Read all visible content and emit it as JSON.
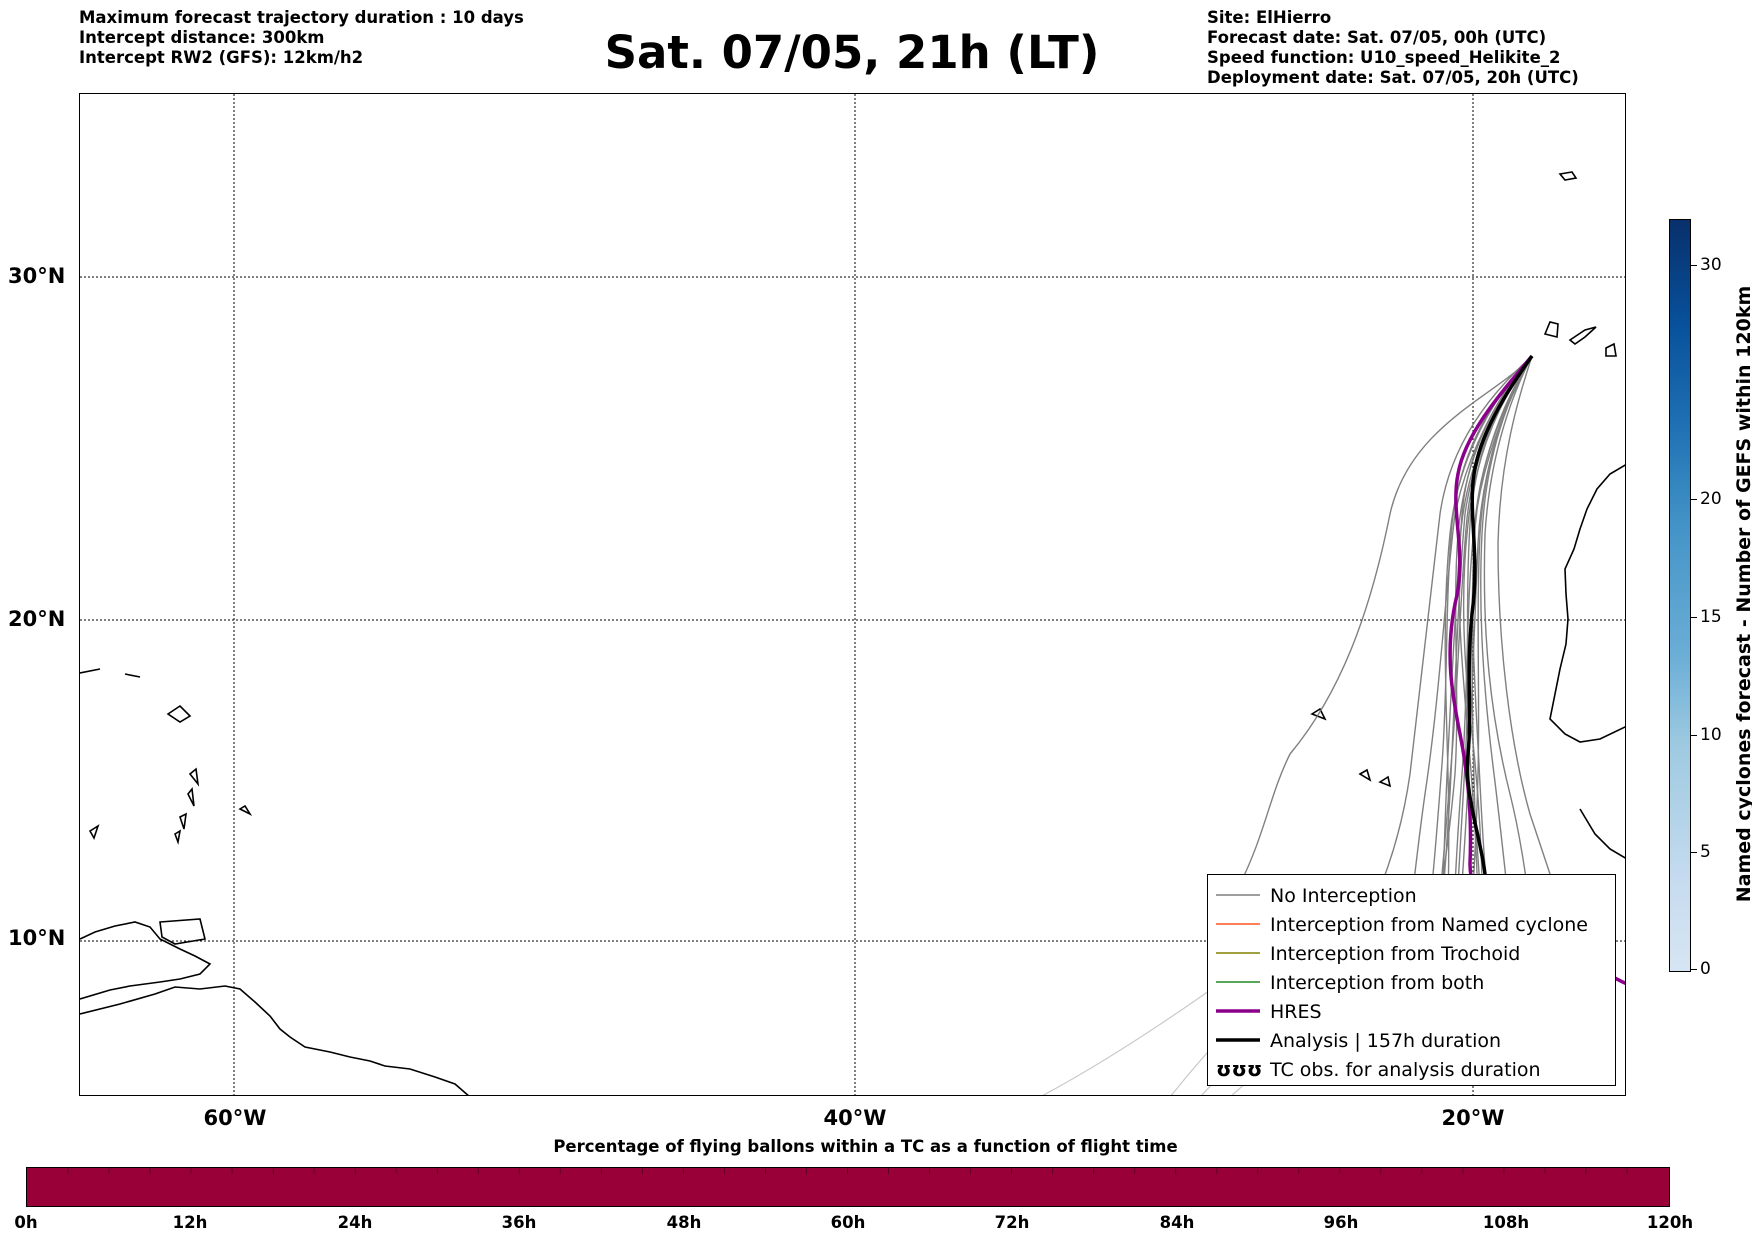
{
  "info_left": [
    "Maximum forecast trajectory duration : 10 days",
    "Intercept distance: 300km",
    "Intercept RW2 (GFS):  12km/h2"
  ],
  "title": "Sat. 07/05, 21h (LT)",
  "info_right": [
    "Site: ElHierro",
    "Forecast date: Sat. 07/05, 00h (UTC)",
    "Speed function: U10_speed_Helikite_2",
    "Deployment date: Sat. 07/05, 20h (UTC)"
  ],
  "map": {
    "lat_labels": [
      "30°N",
      "20°N",
      "10°N"
    ],
    "lon_labels": [
      "60°W",
      "40°W",
      "20°W"
    ],
    "legend": [
      {
        "label": "No Interception",
        "color": "#7f7f7f"
      },
      {
        "label": "Interception from Named cyclone",
        "color": "#ff5722"
      },
      {
        "label": "Interception from Trochoid",
        "color": "#808000"
      },
      {
        "label": "Interception from both",
        "color": "#228b22"
      },
      {
        "label": "HRES",
        "color": "#8b008b"
      },
      {
        "label": "Analysis | 157h duration",
        "color": "#000000"
      },
      {
        "label": "TC obs. for analysis duration",
        "color": "#000000",
        "icon": "ʊʊʊ"
      }
    ]
  },
  "colorbar": {
    "title": "Named cyclones forecast - Number of GEFS within 120km",
    "ticks": [
      "30",
      "20",
      "15",
      "10",
      "5",
      "0"
    ]
  },
  "percent_bar": {
    "title": "Percentage of flying ballons within a TC as a function of flight time",
    "ticks": [
      "0h",
      "12h",
      "24h",
      "36h",
      "48h",
      "60h",
      "72h",
      "84h",
      "96h",
      "108h",
      "120h"
    ],
    "color": "#9a0038"
  }
}
